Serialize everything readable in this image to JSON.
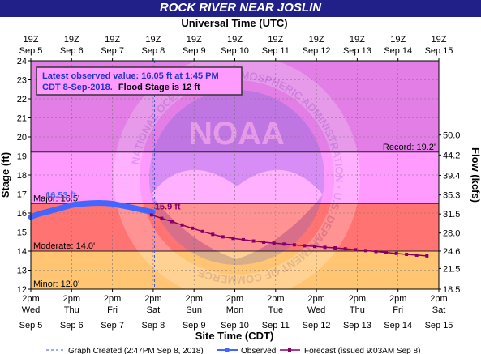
{
  "colors": {
    "title_bar": "#202088",
    "title_text": "#ffffff",
    "record_zone": "#e27ee5",
    "major_zone": "#ff9aff",
    "moderate_zone": "#ff7373",
    "flood_zone": "#ffc573",
    "normal_zone": "#ffffe0",
    "observed": "#4466ff",
    "forecast": "#880066",
    "info_text": "#2233cc",
    "grid": "#777777",
    "threshold_line": "#222222"
  },
  "chart_data": {
    "type": "line",
    "title": "ROCK RIVER NEAR JOSLIN",
    "top_axis_label": "Universal Time (UTC)",
    "xlabel": "Site Time (CDT)",
    "ylabel": "Stage (ft)",
    "y2label": "Flow (kcfs)",
    "ylim": [
      12,
      24
    ],
    "y_ticks": [
      12,
      13,
      14,
      15,
      16,
      17,
      18,
      19,
      20,
      21,
      22,
      23,
      24
    ],
    "y_tick_labels": [
      "12",
      "13",
      "14",
      "15",
      "16",
      "17",
      "18",
      "19",
      "20",
      "21",
      "22",
      "23",
      "24"
    ],
    "xlim": [
      "2018-09-05T14:00",
      "2018-09-15T14:00"
    ],
    "x_ticks": [
      {
        "time": "2018-09-05T14:00",
        "bottom_time": "2pm",
        "bottom_day": "Wed",
        "bottom_date": "Sep 5",
        "top_time": "19Z",
        "top_date": "Sep 5"
      },
      {
        "time": "2018-09-06T14:00",
        "bottom_time": "2pm",
        "bottom_day": "Thu",
        "bottom_date": "Sep 6",
        "top_time": "19Z",
        "top_date": "Sep 6"
      },
      {
        "time": "2018-09-07T14:00",
        "bottom_time": "2pm",
        "bottom_day": "Fri",
        "bottom_date": "Sep 7",
        "top_time": "19Z",
        "top_date": "Sep 7"
      },
      {
        "time": "2018-09-08T14:00",
        "bottom_time": "2pm",
        "bottom_day": "Sat",
        "bottom_date": "Sep 8",
        "top_time": "19Z",
        "top_date": "Sep 8"
      },
      {
        "time": "2018-09-09T14:00",
        "bottom_time": "2pm",
        "bottom_day": "Sun",
        "bottom_date": "Sep 9",
        "top_time": "19Z",
        "top_date": "Sep 9"
      },
      {
        "time": "2018-09-10T14:00",
        "bottom_time": "2pm",
        "bottom_day": "Mon",
        "bottom_date": "Sep 10",
        "top_time": "19Z",
        "top_date": "Sep 10"
      },
      {
        "time": "2018-09-11T14:00",
        "bottom_time": "2pm",
        "bottom_day": "Tue",
        "bottom_date": "Sep 11",
        "top_time": "19Z",
        "top_date": "Sep 11"
      },
      {
        "time": "2018-09-12T14:00",
        "bottom_time": "2pm",
        "bottom_day": "Wed",
        "bottom_date": "Sep 12",
        "top_time": "19Z",
        "top_date": "Sep 12"
      },
      {
        "time": "2018-09-13T14:00",
        "bottom_time": "2pm",
        "bottom_day": "Thu",
        "bottom_date": "Sep 13",
        "top_time": "19Z",
        "top_date": "Sep 13"
      },
      {
        "time": "2018-09-14T14:00",
        "bottom_time": "2pm",
        "bottom_day": "Fri",
        "bottom_date": "Sep 14",
        "top_time": "19Z",
        "top_date": "Sep 14"
      },
      {
        "time": "2018-09-15T14:00",
        "bottom_time": "2pm",
        "bottom_day": "Sat",
        "bottom_date": "Sep 15",
        "top_time": "19Z",
        "top_date": "Sep 15"
      }
    ],
    "flow_axis": [
      {
        "stage": 12.0,
        "label": "18.5"
      },
      {
        "stage": 13.09,
        "label": "21.5"
      },
      {
        "stage": 14.0,
        "label": "24.6"
      },
      {
        "stage": 14.95,
        "label": "28.0"
      },
      {
        "stage": 15.95,
        "label": "31.5"
      },
      {
        "stage": 16.95,
        "label": "35.3"
      },
      {
        "stage": 17.98,
        "label": "39.4"
      },
      {
        "stage": 19.05,
        "label": "44.2"
      },
      {
        "stage": 20.1,
        "label": "50.0"
      }
    ],
    "zones": [
      {
        "name": "record",
        "from": 19.2,
        "to": 24,
        "color": "#e27ee5"
      },
      {
        "name": "major",
        "from": 16.5,
        "to": 19.2,
        "color": "#ff9aff"
      },
      {
        "name": "moderate",
        "from": 14.0,
        "to": 16.5,
        "color": "#ff7373"
      },
      {
        "name": "flood",
        "from": 12.0,
        "to": 14.0,
        "color": "#ffc573"
      }
    ],
    "thresholds": [
      {
        "name": "record",
        "value": 19.2,
        "label": "Record: 19.2'",
        "side": "right"
      },
      {
        "name": "major",
        "value": 16.5,
        "label": "Major: 16.5'",
        "side": "left"
      },
      {
        "name": "moderate",
        "value": 14.0,
        "label": "Moderate: 14.0'",
        "side": "left"
      },
      {
        "name": "minor",
        "value": 12.0,
        "label": "Minor: 12.0'",
        "side": "left"
      }
    ],
    "graph_created_time": "2018-09-08T14:47",
    "series": [
      {
        "name": "Observed",
        "color": "#4466ff",
        "points": [
          {
            "time": "2018-09-05T14:00",
            "stage": 15.8
          },
          {
            "time": "2018-09-05T18:00",
            "stage": 15.93
          },
          {
            "time": "2018-09-05T22:00",
            "stage": 16.03
          },
          {
            "time": "2018-09-06T02:00",
            "stage": 16.12
          },
          {
            "time": "2018-09-06T06:00",
            "stage": 16.22
          },
          {
            "time": "2018-09-06T10:00",
            "stage": 16.32
          },
          {
            "time": "2018-09-06T14:00",
            "stage": 16.42
          },
          {
            "time": "2018-09-06T18:00",
            "stage": 16.47
          },
          {
            "time": "2018-09-06T22:00",
            "stage": 16.5
          },
          {
            "time": "2018-09-07T02:00",
            "stage": 16.52
          },
          {
            "time": "2018-09-07T06:00",
            "stage": 16.53
          },
          {
            "time": "2018-09-07T10:00",
            "stage": 16.52
          },
          {
            "time": "2018-09-07T14:00",
            "stage": 16.49
          },
          {
            "time": "2018-09-07T18:00",
            "stage": 16.42
          },
          {
            "time": "2018-09-07T22:00",
            "stage": 16.35
          },
          {
            "time": "2018-09-08T02:00",
            "stage": 16.28
          },
          {
            "time": "2018-09-08T06:00",
            "stage": 16.2
          },
          {
            "time": "2018-09-08T10:00",
            "stage": 16.12
          },
          {
            "time": "2018-09-08T13:45",
            "stage": 16.05
          }
        ],
        "peak_label": "16.53 ft",
        "peak_time": "2018-09-06T12:00"
      },
      {
        "name": "Forecast (issued 9:03AM Sep 8)",
        "color": "#880066",
        "points": [
          {
            "time": "2018-09-08T13:00",
            "stage": 15.9
          },
          {
            "time": "2018-09-08T19:00",
            "stage": 15.72
          },
          {
            "time": "2018-09-09T01:00",
            "stage": 15.55
          },
          {
            "time": "2018-09-09T07:00",
            "stage": 15.37
          },
          {
            "time": "2018-09-09T13:00",
            "stage": 15.2
          },
          {
            "time": "2018-09-09T19:00",
            "stage": 15.03
          },
          {
            "time": "2018-09-10T01:00",
            "stage": 14.88
          },
          {
            "time": "2018-09-10T07:00",
            "stage": 14.75
          },
          {
            "time": "2018-09-10T13:00",
            "stage": 14.67
          },
          {
            "time": "2018-09-10T19:00",
            "stage": 14.6
          },
          {
            "time": "2018-09-11T01:00",
            "stage": 14.53
          },
          {
            "time": "2018-09-11T07:00",
            "stage": 14.47
          },
          {
            "time": "2018-09-11T13:00",
            "stage": 14.42
          },
          {
            "time": "2018-09-11T19:00",
            "stage": 14.37
          },
          {
            "time": "2018-09-12T01:00",
            "stage": 14.33
          },
          {
            "time": "2018-09-12T07:00",
            "stage": 14.28
          },
          {
            "time": "2018-09-12T13:00",
            "stage": 14.25
          },
          {
            "time": "2018-09-12T19:00",
            "stage": 14.2
          },
          {
            "time": "2018-09-13T01:00",
            "stage": 14.17
          },
          {
            "time": "2018-09-13T07:00",
            "stage": 14.12
          },
          {
            "time": "2018-09-13T13:00",
            "stage": 14.07
          },
          {
            "time": "2018-09-13T19:00",
            "stage": 14.03
          },
          {
            "time": "2018-09-14T01:00",
            "stage": 13.98
          },
          {
            "time": "2018-09-14T07:00",
            "stage": 13.93
          },
          {
            "time": "2018-09-14T13:00",
            "stage": 13.88
          },
          {
            "time": "2018-09-14T19:00",
            "stage": 13.83
          },
          {
            "time": "2018-09-15T01:00",
            "stage": 13.79
          },
          {
            "time": "2018-09-15T07:00",
            "stage": 13.75
          }
        ],
        "start_label": "15.9 ft"
      }
    ],
    "info_box": {
      "line1": "Latest observed value: 16.05 ft at 1:45 PM",
      "line2_blue": "CDT 8-Sep-2018.",
      "line2_black": "Flood Stage is 12 ft"
    },
    "legend": {
      "created": "Graph Created (2:47PM Sep 8, 2018)",
      "observed": "Observed",
      "forecast": "Forecast (issued 9:03AM Sep 8)"
    },
    "watermark": {
      "logo": "NOAA",
      "ring_text": "NATIONAL OCEANIC AND ATMOSPHERIC ADMINISTRATION · U.S. DEPARTMENT OF COMMERCE"
    }
  }
}
